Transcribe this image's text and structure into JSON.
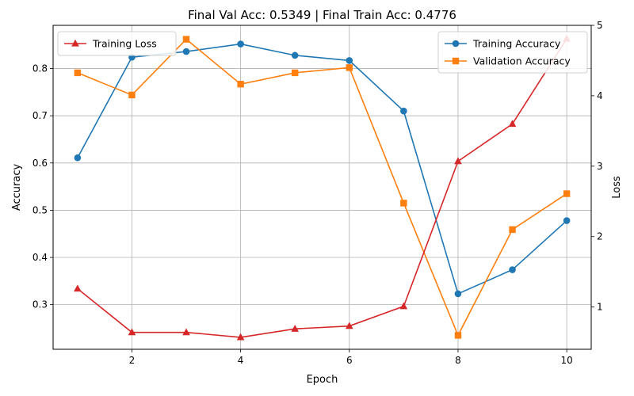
{
  "chart_data": {
    "type": "line",
    "title": "Final Val Acc: 0.5349 | Final Train Acc: 0.4776",
    "xlabel": "Epoch",
    "ylabel_left": "Accuracy",
    "ylabel_right": "Loss",
    "x": [
      1,
      2,
      3,
      4,
      5,
      6,
      7,
      8,
      9,
      10
    ],
    "xlim": [
      0.55,
      10.45
    ],
    "xticks": [
      2,
      4,
      6,
      8,
      10
    ],
    "ylim_left": [
      0.2055,
      0.8915
    ],
    "yticks_left": [
      0.3,
      0.4,
      0.5,
      0.6,
      0.7,
      0.8
    ],
    "ylim_right": [
      0.4,
      5.0
    ],
    "yticks_right": [
      1,
      2,
      3,
      4,
      5
    ],
    "grid": true,
    "series_left": [
      {
        "name": "Training Accuracy",
        "color": "#1f77b4",
        "marker": "circle",
        "values": [
          0.611,
          0.824,
          0.836,
          0.852,
          0.828,
          0.817,
          0.71,
          0.323,
          0.374,
          0.478
        ]
      },
      {
        "name": "Validation Accuracy",
        "color": "#ff7f0e",
        "marker": "square",
        "values": [
          0.791,
          0.744,
          0.862,
          0.767,
          0.791,
          0.802,
          0.515,
          0.235,
          0.459,
          0.535
        ]
      }
    ],
    "series_right": [
      {
        "name": "Training Loss",
        "color": "#d62728",
        "marker": "triangle",
        "values": [
          1.26,
          0.64,
          0.64,
          0.57,
          0.69,
          0.73,
          1.01,
          3.07,
          3.6,
          4.81
        ]
      }
    ],
    "legend_left_position": "upper-left",
    "legend_right_position": "upper-right"
  }
}
